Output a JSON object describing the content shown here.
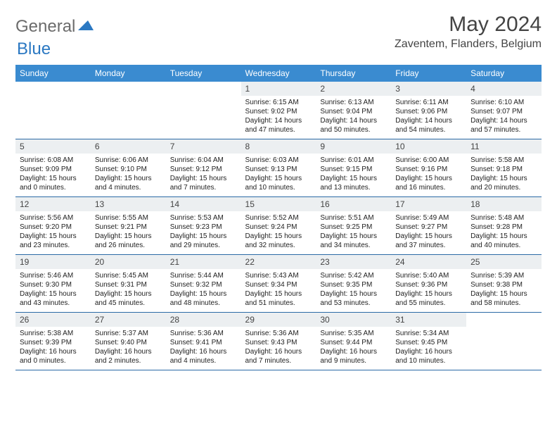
{
  "logo": {
    "text1": "General",
    "text2": "Blue"
  },
  "title": "May 2024",
  "location": "Zaventem, Flanders, Belgium",
  "colors": {
    "header_bg": "#3a8bd0",
    "header_text": "#ffffff",
    "daynum_bg": "#eceff1",
    "row_border": "#2b6aa6",
    "logo_gray": "#6b6b6b",
    "logo_blue": "#2b78c2"
  },
  "dayHeaders": [
    "Sunday",
    "Monday",
    "Tuesday",
    "Wednesday",
    "Thursday",
    "Friday",
    "Saturday"
  ],
  "weeks": [
    [
      {
        "n": "",
        "sr": "",
        "ss": "",
        "dl": ""
      },
      {
        "n": "",
        "sr": "",
        "ss": "",
        "dl": ""
      },
      {
        "n": "",
        "sr": "",
        "ss": "",
        "dl": ""
      },
      {
        "n": "1",
        "sr": "6:15 AM",
        "ss": "9:02 PM",
        "dl": "14 hours and 47 minutes."
      },
      {
        "n": "2",
        "sr": "6:13 AM",
        "ss": "9:04 PM",
        "dl": "14 hours and 50 minutes."
      },
      {
        "n": "3",
        "sr": "6:11 AM",
        "ss": "9:06 PM",
        "dl": "14 hours and 54 minutes."
      },
      {
        "n": "4",
        "sr": "6:10 AM",
        "ss": "9:07 PM",
        "dl": "14 hours and 57 minutes."
      }
    ],
    [
      {
        "n": "5",
        "sr": "6:08 AM",
        "ss": "9:09 PM",
        "dl": "15 hours and 0 minutes."
      },
      {
        "n": "6",
        "sr": "6:06 AM",
        "ss": "9:10 PM",
        "dl": "15 hours and 4 minutes."
      },
      {
        "n": "7",
        "sr": "6:04 AM",
        "ss": "9:12 PM",
        "dl": "15 hours and 7 minutes."
      },
      {
        "n": "8",
        "sr": "6:03 AM",
        "ss": "9:13 PM",
        "dl": "15 hours and 10 minutes."
      },
      {
        "n": "9",
        "sr": "6:01 AM",
        "ss": "9:15 PM",
        "dl": "15 hours and 13 minutes."
      },
      {
        "n": "10",
        "sr": "6:00 AM",
        "ss": "9:16 PM",
        "dl": "15 hours and 16 minutes."
      },
      {
        "n": "11",
        "sr": "5:58 AM",
        "ss": "9:18 PM",
        "dl": "15 hours and 20 minutes."
      }
    ],
    [
      {
        "n": "12",
        "sr": "5:56 AM",
        "ss": "9:20 PM",
        "dl": "15 hours and 23 minutes."
      },
      {
        "n": "13",
        "sr": "5:55 AM",
        "ss": "9:21 PM",
        "dl": "15 hours and 26 minutes."
      },
      {
        "n": "14",
        "sr": "5:53 AM",
        "ss": "9:23 PM",
        "dl": "15 hours and 29 minutes."
      },
      {
        "n": "15",
        "sr": "5:52 AM",
        "ss": "9:24 PM",
        "dl": "15 hours and 32 minutes."
      },
      {
        "n": "16",
        "sr": "5:51 AM",
        "ss": "9:25 PM",
        "dl": "15 hours and 34 minutes."
      },
      {
        "n": "17",
        "sr": "5:49 AM",
        "ss": "9:27 PM",
        "dl": "15 hours and 37 minutes."
      },
      {
        "n": "18",
        "sr": "5:48 AM",
        "ss": "9:28 PM",
        "dl": "15 hours and 40 minutes."
      }
    ],
    [
      {
        "n": "19",
        "sr": "5:46 AM",
        "ss": "9:30 PM",
        "dl": "15 hours and 43 minutes."
      },
      {
        "n": "20",
        "sr": "5:45 AM",
        "ss": "9:31 PM",
        "dl": "15 hours and 45 minutes."
      },
      {
        "n": "21",
        "sr": "5:44 AM",
        "ss": "9:32 PM",
        "dl": "15 hours and 48 minutes."
      },
      {
        "n": "22",
        "sr": "5:43 AM",
        "ss": "9:34 PM",
        "dl": "15 hours and 51 minutes."
      },
      {
        "n": "23",
        "sr": "5:42 AM",
        "ss": "9:35 PM",
        "dl": "15 hours and 53 minutes."
      },
      {
        "n": "24",
        "sr": "5:40 AM",
        "ss": "9:36 PM",
        "dl": "15 hours and 55 minutes."
      },
      {
        "n": "25",
        "sr": "5:39 AM",
        "ss": "9:38 PM",
        "dl": "15 hours and 58 minutes."
      }
    ],
    [
      {
        "n": "26",
        "sr": "5:38 AM",
        "ss": "9:39 PM",
        "dl": "16 hours and 0 minutes."
      },
      {
        "n": "27",
        "sr": "5:37 AM",
        "ss": "9:40 PM",
        "dl": "16 hours and 2 minutes."
      },
      {
        "n": "28",
        "sr": "5:36 AM",
        "ss": "9:41 PM",
        "dl": "16 hours and 4 minutes."
      },
      {
        "n": "29",
        "sr": "5:36 AM",
        "ss": "9:43 PM",
        "dl": "16 hours and 7 minutes."
      },
      {
        "n": "30",
        "sr": "5:35 AM",
        "ss": "9:44 PM",
        "dl": "16 hours and 9 minutes."
      },
      {
        "n": "31",
        "sr": "5:34 AM",
        "ss": "9:45 PM",
        "dl": "16 hours and 10 minutes."
      },
      {
        "n": "",
        "sr": "",
        "ss": "",
        "dl": ""
      }
    ]
  ],
  "labels": {
    "sunrise": "Sunrise: ",
    "sunset": "Sunset: ",
    "daylight": "Daylight: "
  }
}
